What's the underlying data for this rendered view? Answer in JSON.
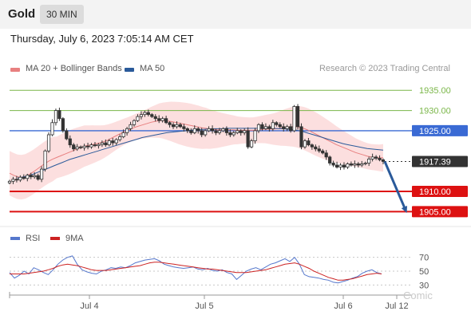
{
  "header": {
    "instrument": "Gold",
    "timeframe": "30 MIN"
  },
  "datetime": "Thursday, July 6, 2023 7:05:14 AM CET",
  "legend": {
    "ma20_label": "MA 20 + Bollinger Bands",
    "ma50_label": "MA 50",
    "credit": "Research © 2023 Trading Central"
  },
  "indicator_legend": {
    "rsi_label": "RSI",
    "ma9_label": "9MA"
  },
  "watermark": "Comic",
  "colors": {
    "ma20": "#e88080",
    "ma50": "#2a5a9a",
    "bollinger_fill": "#fbd9d9",
    "rsi": "#5577cc",
    "rsi_ma": "#cc2222",
    "support": "#dd1111",
    "resistance": "#7ab648",
    "pivot": "#3a6ad4",
    "current": "#333333"
  },
  "chart_data": [
    {
      "type": "candlestick",
      "x_ticks": [
        "Jul 4",
        "Jul 5",
        "Jul 6",
        "Jul 12"
      ],
      "ylim": [
        1902.5,
        1938
      ],
      "levels": [
        {
          "label": "1935.00",
          "value": 1935.0,
          "kind": "resistance"
        },
        {
          "label": "1930.00",
          "value": 1930.0,
          "kind": "resistance"
        },
        {
          "label": "1925.00",
          "value": 1925.0,
          "kind": "pivot"
        },
        {
          "label": "1917.39",
          "value": 1917.39,
          "kind": "current"
        },
        {
          "label": "1910.00",
          "value": 1910.0,
          "kind": "support"
        },
        {
          "label": "1905.00",
          "value": 1905.0,
          "kind": "support"
        }
      ],
      "close": [
        1912.5,
        1913.0,
        1912.8,
        1913.5,
        1913.2,
        1914.0,
        1913.6,
        1913.9,
        1913.0,
        1915.5,
        1920.0,
        1924.0,
        1927.0,
        1930.0,
        1928.0,
        1925.0,
        1923.0,
        1921.5,
        1920.5,
        1921.0,
        1920.8,
        1921.2,
        1921.0,
        1921.5,
        1921.3,
        1921.6,
        1922.0,
        1921.5,
        1922.5,
        1922.0,
        1922.8,
        1923.5,
        1924.5,
        1925.5,
        1926.5,
        1927.5,
        1928.5,
        1929.0,
        1929.5,
        1929.0,
        1928.5,
        1928.0,
        1927.5,
        1928.0,
        1927.0,
        1926.5,
        1926.0,
        1926.5,
        1926.0,
        1925.5,
        1925.0,
        1924.5,
        1925.5,
        1925.0,
        1924.0,
        1925.0,
        1925.5,
        1925.0,
        1924.5,
        1925.0,
        1925.5,
        1924.5,
        1924.0,
        1924.5,
        1925.0,
        1924.5,
        1925.0,
        1921.0,
        1922.5,
        1925.0,
        1926.5,
        1925.5,
        1926.0,
        1925.5,
        1927.0,
        1926.5,
        1926.0,
        1925.5,
        1926.0,
        1925.0,
        1931.0,
        1926.0,
        1921.0,
        1922.5,
        1921.5,
        1921.0,
        1920.5,
        1920.0,
        1919.5,
        1918.5,
        1917.0,
        1916.5,
        1916.0,
        1916.5,
        1916.0,
        1916.8,
        1916.5,
        1916.8,
        1916.5,
        1916.8,
        1917.0,
        1918.0,
        1918.5,
        1918.2,
        1917.8,
        1917.4
      ],
      "series": [
        {
          "name": "MA 20 + Bollinger Bands",
          "values": [
            1914.5,
            1914.0,
            1913.6,
            1913.5,
            1913.7,
            1914.2,
            1914.8,
            1915.5,
            1916.2,
            1916.9,
            1917.5,
            1918.0,
            1918.4,
            1918.8,
            1919.2,
            1919.6,
            1920.0,
            1920.4,
            1920.8,
            1921.2,
            1921.4,
            1921.6,
            1921.8,
            1922.0,
            1922.3,
            1922.7,
            1923.2,
            1923.7,
            1924.2,
            1924.7,
            1925.1,
            1925.5,
            1925.9,
            1926.2,
            1926.5,
            1926.8,
            1927.1,
            1927.3,
            1927.5,
            1927.5,
            1927.4,
            1927.3,
            1927.1,
            1926.9,
            1926.7,
            1926.5,
            1926.3,
            1926.1,
            1925.9,
            1925.7,
            1925.6,
            1925.4,
            1925.3,
            1925.2,
            1925.2,
            1925.2,
            1925.2,
            1925.2,
            1925.1,
            1925.1,
            1925.1,
            1925.1,
            1925.1,
            1925.2,
            1925.3,
            1925.4,
            1925.4,
            1925.4,
            1925.5,
            1925.6,
            1925.8,
            1925.9,
            1926.0,
            1926.0,
            1925.8,
            1925.5,
            1925.1,
            1924.6,
            1924.1,
            1923.6,
            1923.1,
            1922.6,
            1922.1,
            1921.6,
            1921.2,
            1920.8,
            1920.4,
            1920.0,
            1919.6,
            1919.3,
            1919.0,
            1918.7,
            1918.5,
            1918.4,
            1918.3,
            1918.3
          ]
        },
        {
          "name": "MA 50",
          "values": [
            1913.3,
            1913.5,
            1913.7,
            1914.0,
            1914.3,
            1914.7,
            1915.1,
            1915.5,
            1915.9,
            1916.3,
            1916.7,
            1917.1,
            1917.5,
            1917.9,
            1918.2,
            1918.5,
            1918.8,
            1919.1,
            1919.4,
            1919.7,
            1920.0,
            1920.3,
            1920.6,
            1920.9,
            1921.2,
            1921.5,
            1921.8,
            1922.1,
            1922.4,
            1922.7,
            1923.0,
            1923.3,
            1923.5,
            1923.7,
            1923.9,
            1924.1,
            1924.3,
            1924.5,
            1924.6,
            1924.7,
            1924.8,
            1924.9,
            1925.0,
            1925.1,
            1925.2,
            1925.3,
            1925.3,
            1925.4,
            1925.4,
            1925.5,
            1925.5,
            1925.5,
            1925.6,
            1925.6,
            1925.6,
            1925.6,
            1925.6,
            1925.6,
            1925.6,
            1925.6,
            1925.6,
            1925.6,
            1925.6,
            1925.6,
            1925.6,
            1925.5,
            1925.5,
            1925.4,
            1925.3,
            1925.2,
            1925.0,
            1924.8,
            1924.5,
            1924.2,
            1923.9,
            1923.6,
            1923.3,
            1923.0,
            1922.7,
            1922.4,
            1922.1,
            1921.8,
            1921.6,
            1921.4,
            1921.2,
            1921.0,
            1920.8,
            1920.6,
            1920.5,
            1920.4,
            1920.3,
            1920.2
          ]
        }
      ],
      "forecast": {
        "from": 1917.39,
        "to": 1905.0
      }
    },
    {
      "type": "line",
      "x_ticks": [
        "Jul 4",
        "Jul 5",
        "Jul 6",
        "Jul 12"
      ],
      "y_ticks": [
        70,
        50,
        30
      ],
      "ylim": [
        20,
        80
      ],
      "series": [
        {
          "name": "RSI",
          "values": [
            48,
            40,
            44,
            50,
            46,
            55,
            52,
            48,
            45,
            52,
            60,
            66,
            70,
            72,
            60,
            52,
            49,
            47,
            46,
            50,
            52,
            55,
            54,
            56,
            55,
            58,
            62,
            64,
            66,
            67,
            68,
            65,
            60,
            58,
            56,
            55,
            54,
            55,
            56,
            53,
            52,
            54,
            51,
            50,
            52,
            48,
            46,
            38,
            44,
            50,
            53,
            55,
            52,
            56,
            60,
            62,
            65,
            68,
            64,
            70,
            60,
            45,
            42,
            41,
            40,
            38,
            37,
            34,
            33,
            35,
            37,
            40,
            42,
            47,
            50,
            52,
            48,
            46
          ]
        },
        {
          "name": "9MA",
          "values": [
            46,
            46,
            46,
            46,
            47,
            48,
            49,
            50,
            52,
            54,
            57,
            59,
            60,
            59,
            58,
            56,
            54,
            52,
            51,
            51,
            51,
            52,
            53,
            54,
            55,
            56,
            57,
            58,
            60,
            62,
            63,
            63,
            62,
            61,
            60,
            59,
            58,
            57,
            56,
            55,
            54,
            53,
            53,
            52,
            51,
            50,
            49,
            48,
            48,
            48,
            49,
            50,
            51,
            52,
            54,
            56,
            58,
            60,
            61,
            62,
            60,
            57,
            54,
            50,
            47,
            44,
            41,
            39,
            37,
            37,
            38,
            39,
            41,
            43,
            45,
            46,
            47,
            46
          ]
        }
      ]
    }
  ]
}
